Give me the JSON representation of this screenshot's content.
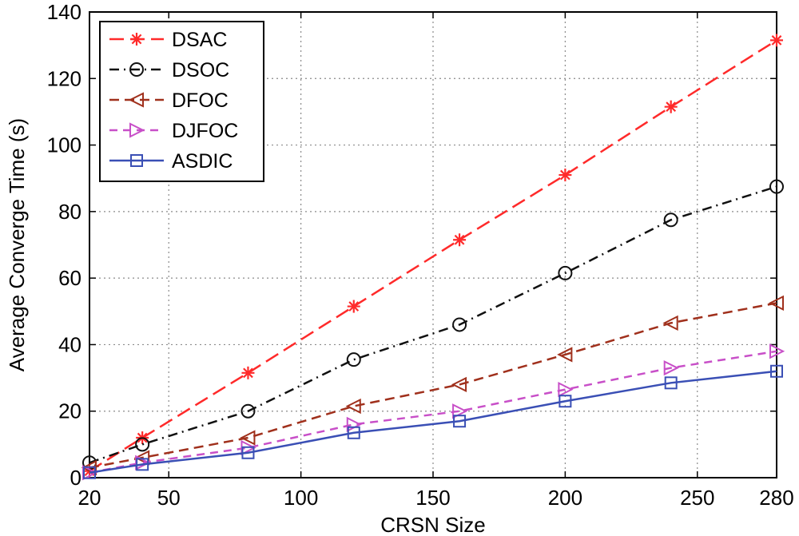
{
  "chart_data": {
    "type": "line",
    "title": "",
    "xlabel": "CRSN Size",
    "ylabel": "Average Converge Time (s)",
    "xlim": [
      20,
      280
    ],
    "ylim": [
      0,
      140
    ],
    "xticks": [
      20,
      50,
      100,
      150,
      200,
      250,
      280
    ],
    "yticks": [
      0,
      20,
      40,
      60,
      80,
      100,
      120,
      140
    ],
    "grid": true,
    "legend_position": "top-left",
    "x": [
      20,
      40,
      80,
      120,
      160,
      200,
      240,
      280
    ],
    "series": [
      {
        "name": "DSAC",
        "color": "#ff2a2a",
        "dash": "18,8",
        "marker": "star",
        "values": [
          2,
          12,
          31.5,
          51.5,
          71.5,
          91,
          111.5,
          131.5
        ]
      },
      {
        "name": "DSOC",
        "color": "#111111",
        "dash": "12,6,2,6",
        "marker": "circle",
        "values": [
          4.5,
          10,
          20,
          35.5,
          46,
          61.5,
          77.5,
          87.5
        ]
      },
      {
        "name": "DFOC",
        "color": "#a0301c",
        "dash": "12,7",
        "marker": "triangle-left",
        "values": [
          3,
          6,
          12,
          21.5,
          28,
          37,
          46.5,
          52.5
        ]
      },
      {
        "name": "DJFOC",
        "color": "#c84fc8",
        "dash": "10,7",
        "marker": "triangle-right",
        "values": [
          1.5,
          4.5,
          9,
          16,
          20,
          26.5,
          33,
          38
        ]
      },
      {
        "name": "ASDIC",
        "color": "#3a4fb5",
        "dash": "",
        "marker": "square",
        "values": [
          1.5,
          4,
          7.5,
          13.5,
          17,
          23,
          28.5,
          32
        ]
      }
    ]
  }
}
